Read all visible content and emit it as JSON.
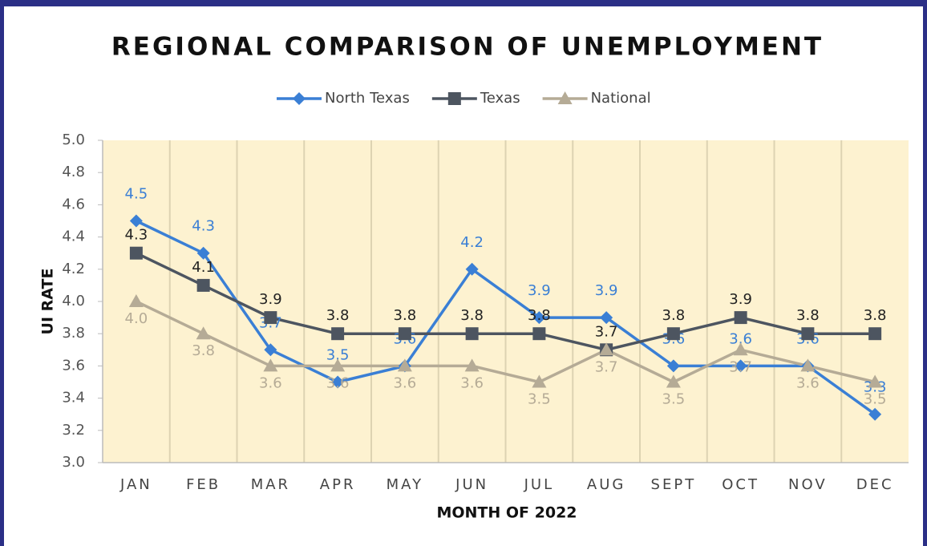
{
  "chart_data": {
    "type": "line",
    "title": "REGIONAL COMPARISON OF UNEMPLOYMENT",
    "x_label": "MONTH OF 2022",
    "y_label": "UI RATE",
    "categories": [
      "JAN",
      "FEB",
      "MAR",
      "APR",
      "MAY",
      "JUN",
      "JUL",
      "AUG",
      "SEPT",
      "OCT",
      "NOV",
      "DEC"
    ],
    "series": [
      {
        "name": "North Texas",
        "color": "#3a7fd5",
        "marker": "diamond",
        "values": [
          4.5,
          4.3,
          3.7,
          3.5,
          3.6,
          4.2,
          3.9,
          3.9,
          3.6,
          3.6,
          3.6,
          3.3
        ],
        "value_labels": [
          "4.5",
          "4.3",
          "3.7",
          "3.5",
          "3.6",
          "4.2",
          "3.9",
          "3.9",
          "3.6",
          "3.6",
          "3.6",
          "3.3"
        ]
      },
      {
        "name": "Texas",
        "color": "#4d5560",
        "marker": "square",
        "values": [
          4.3,
          4.1,
          3.9,
          3.8,
          3.8,
          3.8,
          3.8,
          3.7,
          3.8,
          3.9,
          3.8,
          3.8
        ],
        "value_labels": [
          "4.3",
          "4.1",
          "3.9",
          "3.8",
          "3.8",
          "3.8",
          "3.8",
          "3.7",
          "3.8",
          "3.9",
          "3.8",
          "3.8"
        ]
      },
      {
        "name": "National",
        "color": "#b5ab96",
        "marker": "triangle",
        "values": [
          4.0,
          3.8,
          3.6,
          3.6,
          3.6,
          3.6,
          3.5,
          3.7,
          3.5,
          3.7,
          3.6,
          3.5
        ],
        "value_labels": [
          "4.0",
          "3.8",
          "3.6",
          "3.6",
          "3.6",
          "3.6",
          "3.5",
          "3.7",
          "3.5",
          "3.7",
          "3.6",
          "3.5"
        ]
      }
    ],
    "ylim": [
      3,
      5
    ],
    "yticks": [
      {
        "value": 3,
        "label": "3.0"
      },
      3.2,
      3.4,
      3.6,
      3.8,
      {
        "value": 4,
        "label": "4.0"
      },
      4.2,
      4.4,
      4.6,
      4.8,
      {
        "value": 5,
        "label": "5.0"
      }
    ],
    "legend": "top"
  }
}
